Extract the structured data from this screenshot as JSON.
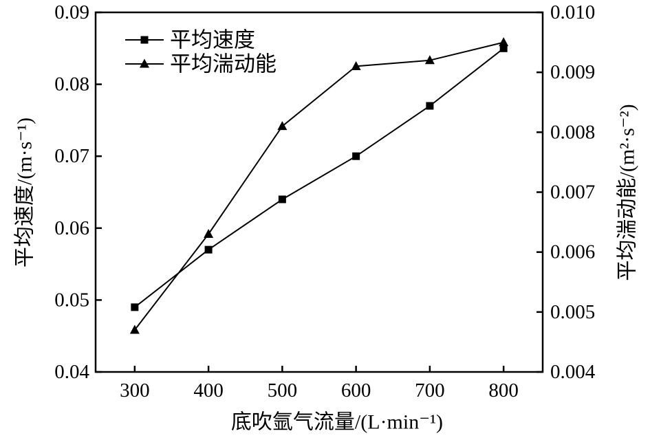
{
  "chart_data": {
    "type": "line",
    "title": "",
    "x": [
      300,
      400,
      500,
      600,
      700,
      800
    ],
    "xlabel": "底吹氩气流量/(L·min⁻¹)",
    "x_tick_labels": [
      "300",
      "400",
      "500",
      "600",
      "700",
      "800"
    ],
    "xlim": [
      247,
      853
    ],
    "grid": false,
    "axes": {
      "left": {
        "label": "平均速度/(m·s⁻¹)",
        "lim": [
          0.04,
          0.09
        ],
        "tick_values": [
          0.04,
          0.05,
          0.06,
          0.07,
          0.08,
          0.09
        ],
        "tick_labels": [
          "0.04",
          "0.05",
          "0.06",
          "0.07",
          "0.08",
          "0.09"
        ]
      },
      "right": {
        "label": "平均湍动能/(m²·s⁻²)",
        "lim": [
          0.004,
          0.01
        ],
        "tick_values": [
          0.004,
          0.005,
          0.006,
          0.007,
          0.008,
          0.009,
          0.01
        ],
        "tick_labels": [
          "0.004",
          "0.005",
          "0.006",
          "0.007",
          "0.008",
          "0.009",
          "0.010"
        ]
      }
    },
    "series": [
      {
        "name": "平均速度",
        "axis": "left",
        "marker": "square",
        "values": [
          0.049,
          0.057,
          0.064,
          0.07,
          0.077,
          0.085
        ]
      },
      {
        "name": "平均湍动能",
        "axis": "right",
        "marker": "triangle",
        "values": [
          0.0047,
          0.0063,
          0.0081,
          0.0091,
          0.0092,
          0.0095
        ]
      }
    ],
    "legend": {
      "position": "top-left",
      "entries": [
        "平均速度",
        "平均湍动能"
      ]
    },
    "colors": {
      "foreground": "#000000",
      "background": "#ffffff"
    }
  }
}
